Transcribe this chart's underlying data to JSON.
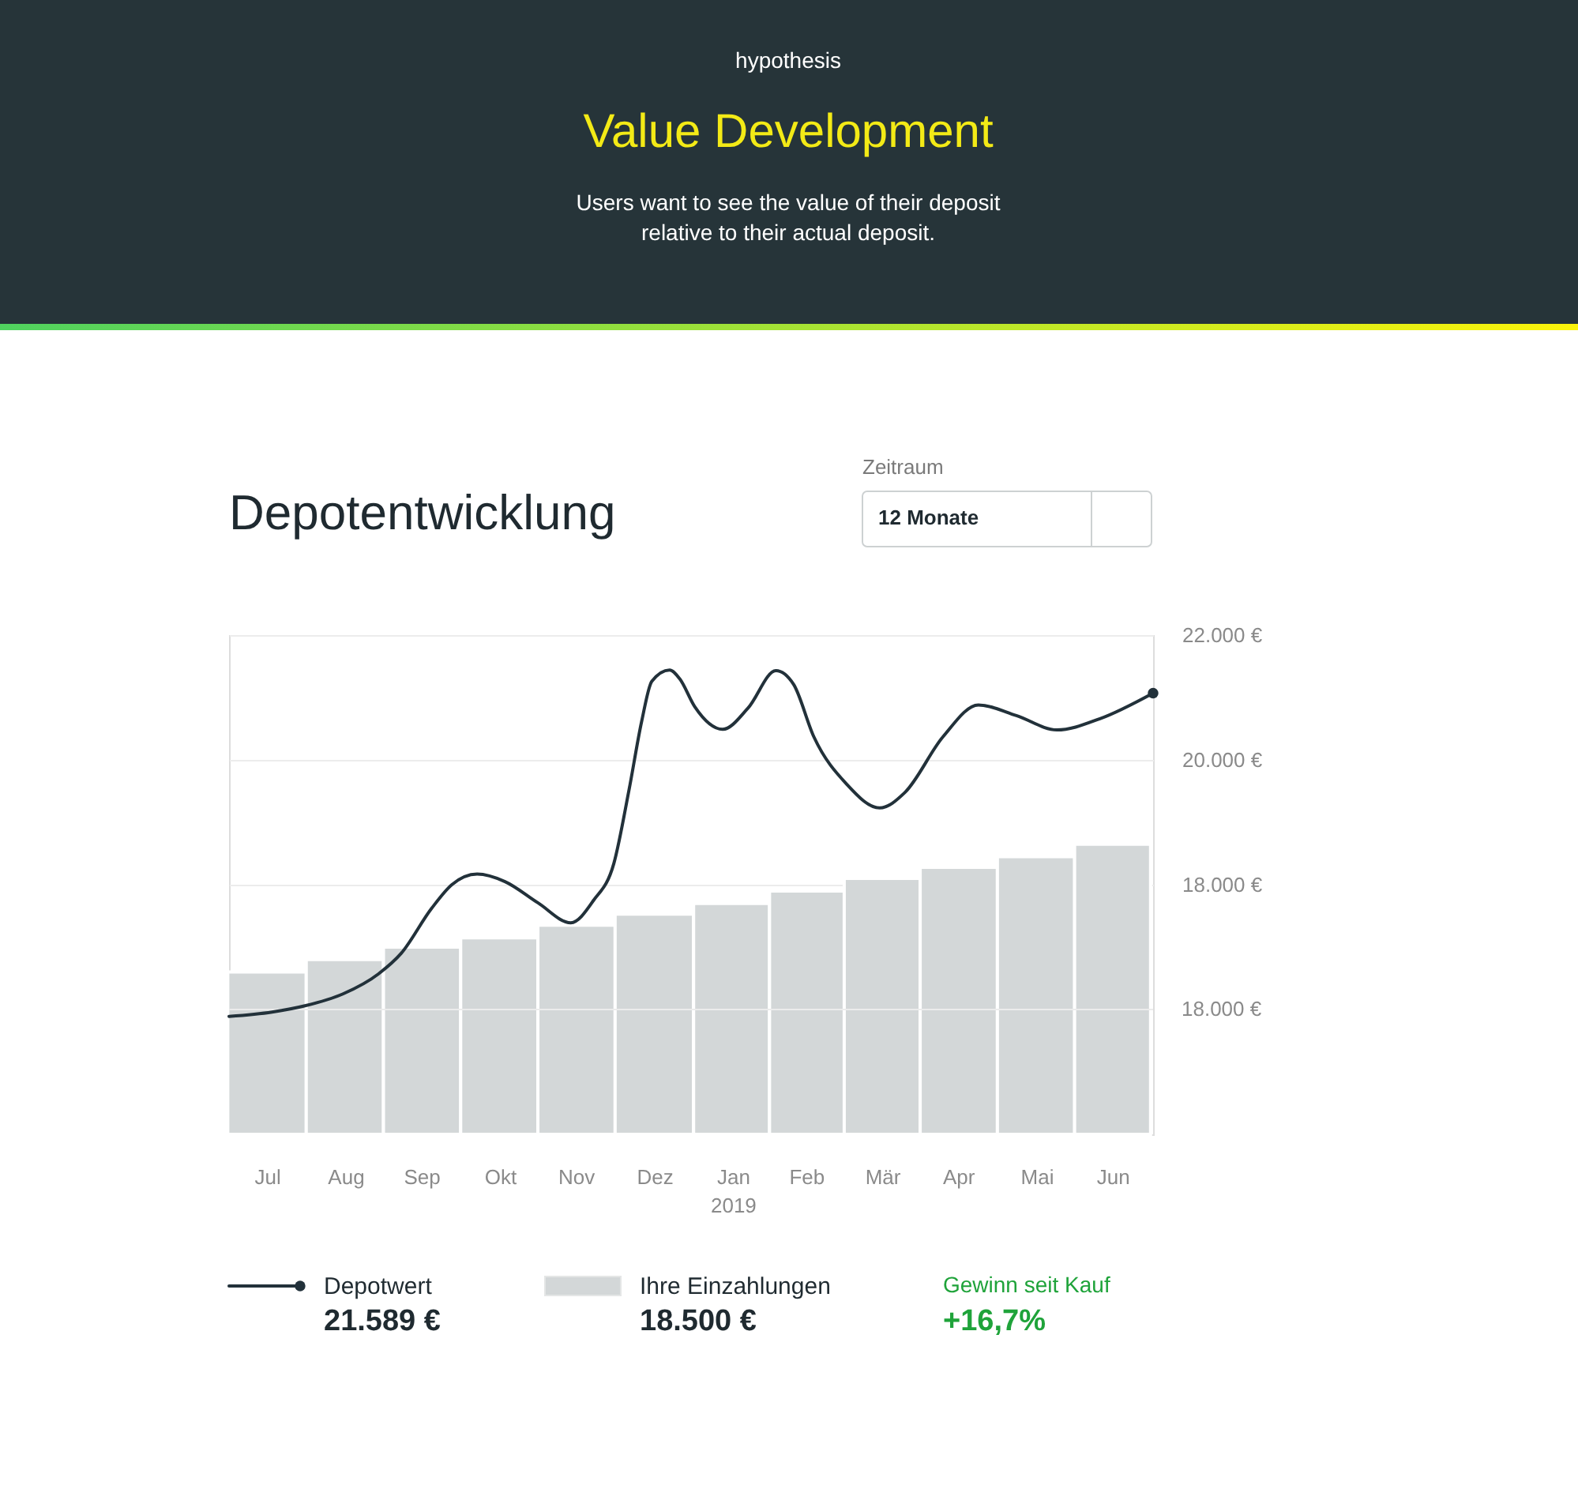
{
  "chart_data": {
    "type": "bar",
    "title": "Depotentwicklung",
    "annotations": [
      "hypothesis",
      "Value Development",
      "Users want to see the value of their deposit relative to their actual deposit.",
      "Zeitraum",
      "12 Monate",
      "21.589 €",
      "18.500 €",
      "Gewinn seit Kauf",
      "+16,7%"
    ],
    "series": [
      {
        "name": "Depotwert",
        "type": "line",
        "color": "#22313a",
        "x": [
          "2018-07-01",
          "2018-07-18",
          "2018-07-31",
          "2018-08-15",
          "2018-08-29",
          "2018-09-07",
          "2018-09-19",
          "2018-09-27",
          "2018-10-07",
          "2018-10-18",
          "2018-10-31",
          "2018-11-13",
          "2018-11-22",
          "2018-11-30",
          "2018-12-06",
          "2018-12-11",
          "2018-12-15",
          "2018-12-22",
          "2018-12-26",
          "2019-01-01",
          "2019-01-12",
          "2019-01-22",
          "2019-02-02",
          "2019-02-09",
          "2019-02-17",
          "2019-03-02",
          "2019-03-15",
          "2019-03-25",
          "2019-04-09",
          "2019-04-23",
          "2019-05-08",
          "2019-05-24",
          "2019-06-10",
          "2019-07-01"
        ],
        "values": [
          15890,
          15960,
          16060,
          16250,
          16570,
          16900,
          17620,
          18000,
          18170,
          18050,
          17710,
          17390,
          17750,
          18340,
          19520,
          20620,
          21260,
          21440,
          21300,
          20850,
          20490,
          20830,
          21430,
          21210,
          20370,
          19610,
          19230,
          19480,
          20370,
          20880,
          20710,
          20480,
          20660,
          21070
        ]
      },
      {
        "name": "Ihre Einzahlungen",
        "color": "#d3d7d8",
        "x": [
          "2018-07-16",
          "2018-08-16",
          "2018-09-15",
          "2018-10-16",
          "2018-11-15",
          "2018-12-16",
          "2019-01-16",
          "2019-02-14",
          "2019-03-16",
          "2019-04-15",
          "2019-05-16",
          "2019-06-15"
        ],
        "values": [
          16600,
          16800,
          17000,
          17150,
          17350,
          17530,
          17700,
          17900,
          18100,
          18280,
          18450,
          18650
        ]
      }
    ],
    "xlim": [
      "2018-07-01",
      "2019-07-01"
    ],
    "xticks": [
      {
        "value": "2018-07-16",
        "label": "Jul"
      },
      {
        "value": "2018-08-16",
        "label": "Aug"
      },
      {
        "value": "2018-09-15",
        "label": "Sep"
      },
      {
        "value": "2018-10-16",
        "label": "Okt"
      },
      {
        "value": "2018-11-15",
        "label": "Nov"
      },
      {
        "value": "2018-12-16",
        "label": "Dez"
      },
      {
        "value": "2019-01-16",
        "label": "Jan 2019"
      },
      {
        "value": "2019-02-14",
        "label": "Feb"
      },
      {
        "value": "2019-03-16",
        "label": "Mär"
      },
      {
        "value": "2019-04-15",
        "label": "Apr"
      },
      {
        "value": "2019-05-16",
        "label": "Mai"
      },
      {
        "value": "2019-06-15",
        "label": "Jun"
      }
    ],
    "ylim": [
      14000,
      22000
    ],
    "yticks": [
      {
        "value": 18000,
        "label": "18.000 €"
      },
      {
        "value": 20000,
        "label": "20.000 €"
      },
      {
        "value": 22000,
        "label": "22.000 €"
      }
    ],
    "ref_lines": [
      {
        "axis": "y",
        "value": 16000,
        "label": "18.000 €",
        "color": "#ececec"
      }
    ],
    "grid": "y",
    "legend": "bottom"
  }
}
